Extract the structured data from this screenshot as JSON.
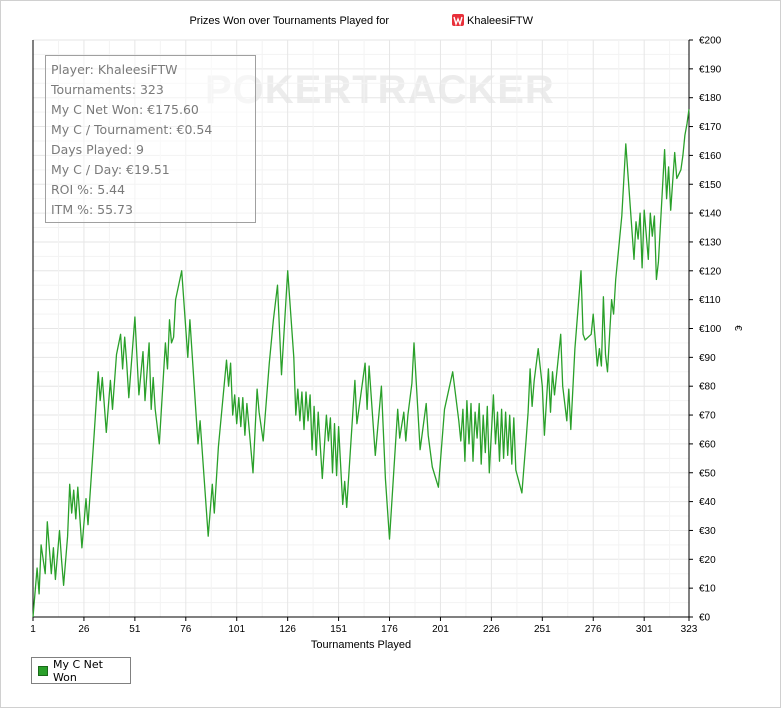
{
  "chart_data": {
    "type": "line",
    "title": "Prizes Won over Tournaments Played for",
    "player_name": "KhaleesiFTW",
    "watermark": "POKERTRACKER",
    "xlabel": "Tournaments Played",
    "ylabel": "",
    "y_axis_glyph": "€",
    "xlim": [
      1,
      323
    ],
    "ylim": [
      0,
      200
    ],
    "x_ticks": [
      1,
      26,
      51,
      76,
      101,
      126,
      151,
      176,
      201,
      226,
      251,
      276,
      301,
      323
    ],
    "y_ticks": [
      0,
      10,
      20,
      30,
      40,
      50,
      60,
      70,
      80,
      90,
      100,
      110,
      120,
      130,
      140,
      150,
      160,
      170,
      180,
      190,
      200
    ],
    "y_tick_prefix": "€",
    "grid": true,
    "legend_position": "bottom-left",
    "series": [
      {
        "name": "My C Net Won",
        "color": "#2aa02a",
        "points": [
          [
            1,
            0
          ],
          [
            3,
            17
          ],
          [
            4,
            8
          ],
          [
            5,
            25
          ],
          [
            7,
            15
          ],
          [
            8,
            33
          ],
          [
            10,
            15
          ],
          [
            11,
            24
          ],
          [
            12,
            13
          ],
          [
            14,
            30
          ],
          [
            15,
            20
          ],
          [
            16,
            11
          ],
          [
            18,
            28
          ],
          [
            19,
            46
          ],
          [
            20,
            36
          ],
          [
            21,
            44
          ],
          [
            22,
            34
          ],
          [
            23,
            45
          ],
          [
            25,
            24
          ],
          [
            27,
            41
          ],
          [
            28,
            32
          ],
          [
            31,
            63
          ],
          [
            33,
            85
          ],
          [
            34,
            75
          ],
          [
            35,
            83
          ],
          [
            37,
            64
          ],
          [
            39,
            82
          ],
          [
            40,
            72
          ],
          [
            42,
            91
          ],
          [
            44,
            98
          ],
          [
            45,
            86
          ],
          [
            46,
            97
          ],
          [
            47,
            88
          ],
          [
            48,
            76
          ],
          [
            51,
            104
          ],
          [
            53,
            77
          ],
          [
            55,
            92
          ],
          [
            56,
            75
          ],
          [
            58,
            95
          ],
          [
            59,
            72
          ],
          [
            60,
            83
          ],
          [
            61,
            72
          ],
          [
            63,
            60
          ],
          [
            66,
            95
          ],
          [
            67,
            86
          ],
          [
            68,
            103
          ],
          [
            69,
            95
          ],
          [
            70,
            97
          ],
          [
            71,
            110
          ],
          [
            74,
            120
          ],
          [
            77,
            90
          ],
          [
            78,
            103
          ],
          [
            82,
            60
          ],
          [
            83,
            68
          ],
          [
            87,
            28
          ],
          [
            89,
            46
          ],
          [
            90,
            36
          ],
          [
            92,
            59
          ],
          [
            96,
            89
          ],
          [
            97,
            80
          ],
          [
            98,
            88
          ],
          [
            99,
            70
          ],
          [
            100,
            77
          ],
          [
            101,
            67
          ],
          [
            102,
            76
          ],
          [
            103,
            66
          ],
          [
            104,
            76
          ],
          [
            105,
            63
          ],
          [
            106,
            74
          ],
          [
            109,
            50
          ],
          [
            111,
            79
          ],
          [
            112,
            71
          ],
          [
            114,
            61
          ],
          [
            117,
            88
          ],
          [
            119,
            103
          ],
          [
            121,
            115
          ],
          [
            123,
            84
          ],
          [
            126,
            120
          ],
          [
            129,
            90
          ],
          [
            130,
            70
          ],
          [
            131,
            79
          ],
          [
            132,
            68
          ],
          [
            133,
            78
          ],
          [
            134,
            65
          ],
          [
            135,
            78
          ],
          [
            136,
            68
          ],
          [
            137,
            77
          ],
          [
            138,
            58
          ],
          [
            139,
            73
          ],
          [
            140,
            56
          ],
          [
            141,
            71
          ],
          [
            143,
            48
          ],
          [
            145,
            70
          ],
          [
            146,
            61
          ],
          [
            147,
            69
          ],
          [
            148,
            50
          ],
          [
            149,
            67
          ],
          [
            150,
            49
          ],
          [
            151,
            66
          ],
          [
            153,
            39
          ],
          [
            154,
            47
          ],
          [
            155,
            38
          ],
          [
            159,
            82
          ],
          [
            160,
            67
          ],
          [
            164,
            88
          ],
          [
            165,
            72
          ],
          [
            166,
            87
          ],
          [
            169,
            56
          ],
          [
            172,
            80
          ],
          [
            174,
            48
          ],
          [
            176,
            27
          ],
          [
            180,
            72
          ],
          [
            181,
            62
          ],
          [
            183,
            71
          ],
          [
            184,
            61
          ],
          [
            185,
            70
          ],
          [
            187,
            81
          ],
          [
            188,
            95
          ],
          [
            191,
            58
          ],
          [
            194,
            74
          ],
          [
            195,
            63
          ],
          [
            197,
            52
          ],
          [
            200,
            45
          ],
          [
            203,
            72
          ],
          [
            207,
            85
          ],
          [
            210,
            68
          ],
          [
            211,
            61
          ],
          [
            212,
            72
          ],
          [
            213,
            54
          ],
          [
            214,
            75
          ],
          [
            215,
            60
          ],
          [
            216,
            74
          ],
          [
            217,
            54
          ],
          [
            218,
            71
          ],
          [
            219,
            62
          ],
          [
            220,
            74
          ],
          [
            221,
            53
          ],
          [
            222,
            70
          ],
          [
            223,
            57
          ],
          [
            224,
            73
          ],
          [
            225,
            50
          ],
          [
            227,
            77
          ],
          [
            228,
            60
          ],
          [
            229,
            71
          ],
          [
            230,
            54
          ],
          [
            231,
            72
          ],
          [
            232,
            55
          ],
          [
            233,
            71
          ],
          [
            234,
            56
          ],
          [
            235,
            70
          ],
          [
            236,
            53
          ],
          [
            237,
            69
          ],
          [
            238,
            51
          ],
          [
            241,
            43
          ],
          [
            243,
            61
          ],
          [
            244,
            71
          ],
          [
            245,
            86
          ],
          [
            246,
            73
          ],
          [
            247,
            82
          ],
          [
            249,
            93
          ],
          [
            251,
            80
          ],
          [
            252,
            63
          ],
          [
            254,
            86
          ],
          [
            255,
            71
          ],
          [
            256,
            85
          ],
          [
            257,
            77
          ],
          [
            260,
            98
          ],
          [
            261,
            80
          ],
          [
            263,
            68
          ],
          [
            264,
            79
          ],
          [
            265,
            65
          ],
          [
            267,
            93
          ],
          [
            270,
            120
          ],
          [
            271,
            98
          ],
          [
            272,
            96
          ],
          [
            275,
            98
          ],
          [
            276,
            105
          ],
          [
            278,
            87
          ],
          [
            279,
            93
          ],
          [
            280,
            87
          ],
          [
            281,
            111
          ],
          [
            282,
            91
          ],
          [
            283,
            85
          ],
          [
            285,
            110
          ],
          [
            286,
            105
          ],
          [
            287,
            117
          ],
          [
            290,
            139
          ],
          [
            292,
            164
          ],
          [
            296,
            124
          ],
          [
            297,
            137
          ],
          [
            298,
            131
          ],
          [
            299,
            140
          ],
          [
            300,
            121
          ],
          [
            301,
            141
          ],
          [
            303,
            124
          ],
          [
            304,
            140
          ],
          [
            305,
            132
          ],
          [
            306,
            139
          ],
          [
            307,
            117
          ],
          [
            308,
            123
          ],
          [
            311,
            162
          ],
          [
            312,
            145
          ],
          [
            313,
            156
          ],
          [
            314,
            141
          ],
          [
            316,
            161
          ],
          [
            317,
            152
          ],
          [
            319,
            155
          ],
          [
            320,
            160
          ],
          [
            321,
            167
          ],
          [
            322,
            171
          ],
          [
            323,
            176
          ]
        ]
      }
    ]
  },
  "stats_box": {
    "player": "Player: KhaleesiFTW",
    "tournaments": "Tournaments: 323",
    "net_won": "My C Net Won: €175.60",
    "per_tournament": "My C / Tournament: €0.54",
    "days_played": "Days Played: 9",
    "per_day": "My C / Day: €19.51",
    "roi": "ROI %: 5.44",
    "itm": "ITM %: 55.73"
  },
  "legend": {
    "label": "My C Net Won"
  },
  "colors": {
    "line": "#2aa02a",
    "grid": "#e6e6e6",
    "watermark": "#ececec",
    "title_icon": "#e8303a"
  },
  "icons": {
    "title_icon": "pokerstars-w-icon"
  }
}
